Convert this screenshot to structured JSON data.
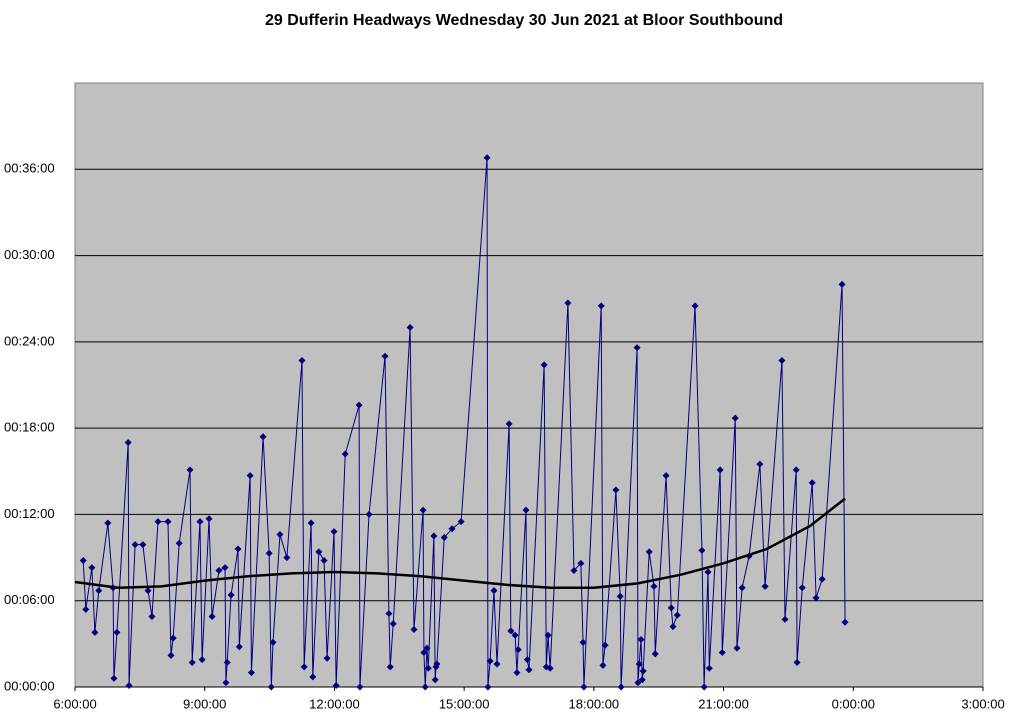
{
  "chart_data": {
    "type": "line",
    "title": "29 Dufferin Headways Wednesday 30 Jun 2021 at Bloor Southbound",
    "xlim": [
      6,
      27
    ],
    "xticks": [
      {
        "value": 6,
        "label": "6:00:00"
      },
      {
        "value": 9,
        "label": "9:00:00"
      },
      {
        "value": 12,
        "label": "12:00:00"
      },
      {
        "value": 15,
        "label": "15:00:00"
      },
      {
        "value": 18,
        "label": "18:00:00"
      },
      {
        "value": 21,
        "label": "21:00:00"
      },
      {
        "value": 24,
        "label": "0:00:00"
      },
      {
        "value": 27,
        "label": "3:00:00"
      }
    ],
    "ylim": [
      0,
      42
    ],
    "yticks": [
      {
        "value": 0,
        "label": "00:00:00"
      },
      {
        "value": 6,
        "label": "00:06:00"
      },
      {
        "value": 12,
        "label": "00:12:00"
      },
      {
        "value": 18,
        "label": "00:18:00"
      },
      {
        "value": 24,
        "label": "00:24:00"
      },
      {
        "value": 30,
        "label": "00:30:00"
      },
      {
        "value": 36,
        "label": "00:36:00"
      }
    ],
    "grid": true,
    "plot_background": "#c0c0c0",
    "series": [
      {
        "color": "#000080",
        "marker": "diamond",
        "x": [
          6.19,
          6.25,
          6.39,
          6.46,
          6.55,
          6.76,
          6.88,
          6.9,
          6.97,
          7.23,
          7.25,
          7.39,
          7.57,
          7.69,
          7.78,
          7.92,
          8.15,
          8.22,
          8.27,
          8.41,
          8.66,
          8.71,
          8.89,
          8.94,
          9.1,
          9.17,
          9.33,
          9.47,
          9.49,
          9.52,
          9.61,
          9.77,
          9.8,
          10.05,
          10.08,
          10.35,
          10.49,
          10.54,
          10.58,
          10.74,
          10.9,
          11.25,
          11.3,
          11.46,
          11.5,
          11.64,
          11.76,
          11.83,
          11.99,
          12.04,
          12.25,
          12.57,
          12.59,
          12.8,
          13.17,
          13.26,
          13.29,
          13.36,
          13.75,
          13.84,
          14.05,
          14.07,
          14.1,
          14.14,
          14.17,
          14.3,
          14.33,
          14.35,
          14.37,
          14.54,
          14.72,
          14.93,
          15.53,
          15.55,
          15.6,
          15.69,
          15.76,
          16.04,
          16.08,
          16.18,
          16.22,
          16.25,
          16.43,
          16.46,
          16.5,
          16.85,
          16.9,
          16.94,
          16.99,
          17.4,
          17.54,
          17.7,
          17.75,
          17.77,
          18.17,
          18.21,
          18.26,
          18.51,
          18.61,
          18.63,
          19.0,
          19.02,
          19.05,
          19.09,
          19.12,
          19.14,
          19.28,
          19.39,
          19.42,
          19.67,
          19.79,
          19.83,
          19.93,
          20.34,
          20.5,
          20.55,
          20.64,
          20.67,
          20.92,
          20.97,
          21.27,
          21.31,
          21.43,
          21.59,
          21.84,
          21.96,
          22.35,
          22.42,
          22.68,
          22.7,
          22.82,
          23.05,
          23.14,
          23.28,
          23.74,
          23.81
        ],
        "values": [
          8.8,
          5.4,
          8.3,
          3.8,
          6.7,
          11.4,
          6.9,
          0.6,
          3.8,
          17.0,
          0.1,
          9.9,
          9.9,
          6.7,
          4.9,
          11.5,
          11.5,
          2.2,
          3.4,
          10.0,
          15.1,
          1.7,
          11.5,
          1.9,
          11.7,
          4.9,
          8.1,
          8.3,
          0.3,
          1.7,
          6.4,
          9.6,
          2.8,
          14.7,
          1.0,
          17.4,
          9.3,
          0,
          3.1,
          10.6,
          9.0,
          22.7,
          1.4,
          11.4,
          0.7,
          9.4,
          8.8,
          2.0,
          10.8,
          0.1,
          16.2,
          19.6,
          0,
          12.0,
          23.0,
          5.1,
          1.4,
          4.4,
          25.0,
          4.0,
          12.3,
          2.4,
          0,
          2.7,
          1.3,
          10.5,
          0.5,
          1.4,
          1.6,
          10.4,
          11.0,
          11.5,
          36.8,
          0,
          1.8,
          6.7,
          1.6,
          18.3,
          3.9,
          3.6,
          1.0,
          2.6,
          12.3,
          1.9,
          1.2,
          22.4,
          1.4,
          3.6,
          1.3,
          26.7,
          8.1,
          8.6,
          3.1,
          0,
          26.5,
          1.5,
          2.9,
          13.7,
          6.3,
          0,
          23.6,
          0.3,
          1.6,
          3.3,
          0.5,
          1.1,
          9.4,
          7.0,
          2.3,
          14.7,
          5.5,
          4.2,
          5.0,
          26.5,
          9.5,
          0,
          8.0,
          1.3,
          15.1,
          2.4,
          18.7,
          2.7,
          6.9,
          9.1,
          15.5,
          7.0,
          22.7,
          4.7,
          15.1,
          1.7,
          6.9,
          14.2,
          6.2,
          7.5,
          28.0,
          4.5
        ]
      },
      {
        "color": "#000000",
        "marker": "none",
        "x": [
          6.0,
          7.0,
          8.0,
          9.0,
          10.0,
          11.0,
          12.0,
          13.0,
          14.0,
          15.0,
          16.0,
          17.0,
          18.0,
          19.0,
          20.0,
          21.0,
          22.0,
          23.0,
          23.81
        ],
        "values": [
          7.3,
          6.9,
          7.0,
          7.4,
          7.7,
          7.9,
          8.0,
          7.9,
          7.7,
          7.4,
          7.1,
          6.9,
          6.9,
          7.2,
          7.8,
          8.6,
          9.6,
          11.2,
          13.1
        ]
      }
    ]
  }
}
